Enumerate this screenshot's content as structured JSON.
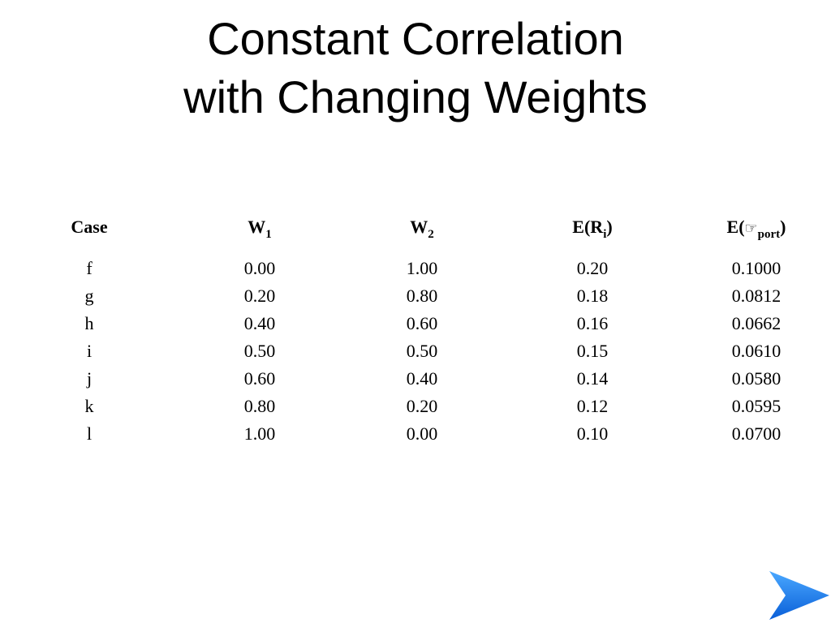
{
  "title": {
    "line1": "Constant Correlation",
    "line2": "with Changing Weights"
  },
  "table": {
    "headers": {
      "case": "Case",
      "w1_base": "W",
      "w1_sub": "1",
      "w2_base": "W",
      "w2_sub": "2",
      "er_prefix": "E(R",
      "er_sub": "i",
      "er_suffix": ")",
      "sp_prefix": "E(",
      "sp_symbol": "☞",
      "sp_sub": "port",
      "sp_suffix": ")"
    },
    "rows": [
      {
        "case": "f",
        "w1": "0.00",
        "w2": "1.00",
        "er": "0.20",
        "sp": "0.1000"
      },
      {
        "case": "g",
        "w1": "0.20",
        "w2": "0.80",
        "er": "0.18",
        "sp": "0.0812"
      },
      {
        "case": "h",
        "w1": "0.40",
        "w2": "0.60",
        "er": "0.16",
        "sp": "0.0662"
      },
      {
        "case": "i",
        "w1": "0.50",
        "w2": "0.50",
        "er": "0.15",
        "sp": "0.0610"
      },
      {
        "case": "j",
        "w1": "0.60",
        "w2": "0.40",
        "er": "0.14",
        "sp": "0.0580"
      },
      {
        "case": "k",
        "w1": "0.80",
        "w2": "0.20",
        "er": "0.12",
        "sp": "0.0595"
      },
      {
        "case": "l",
        "w1": "1.00",
        "w2": "0.00",
        "er": "0.10",
        "sp": "0.0700"
      }
    ]
  },
  "navigation": {
    "next_icon": "next-arrow-icon",
    "next_color": "#1a7cf5"
  }
}
